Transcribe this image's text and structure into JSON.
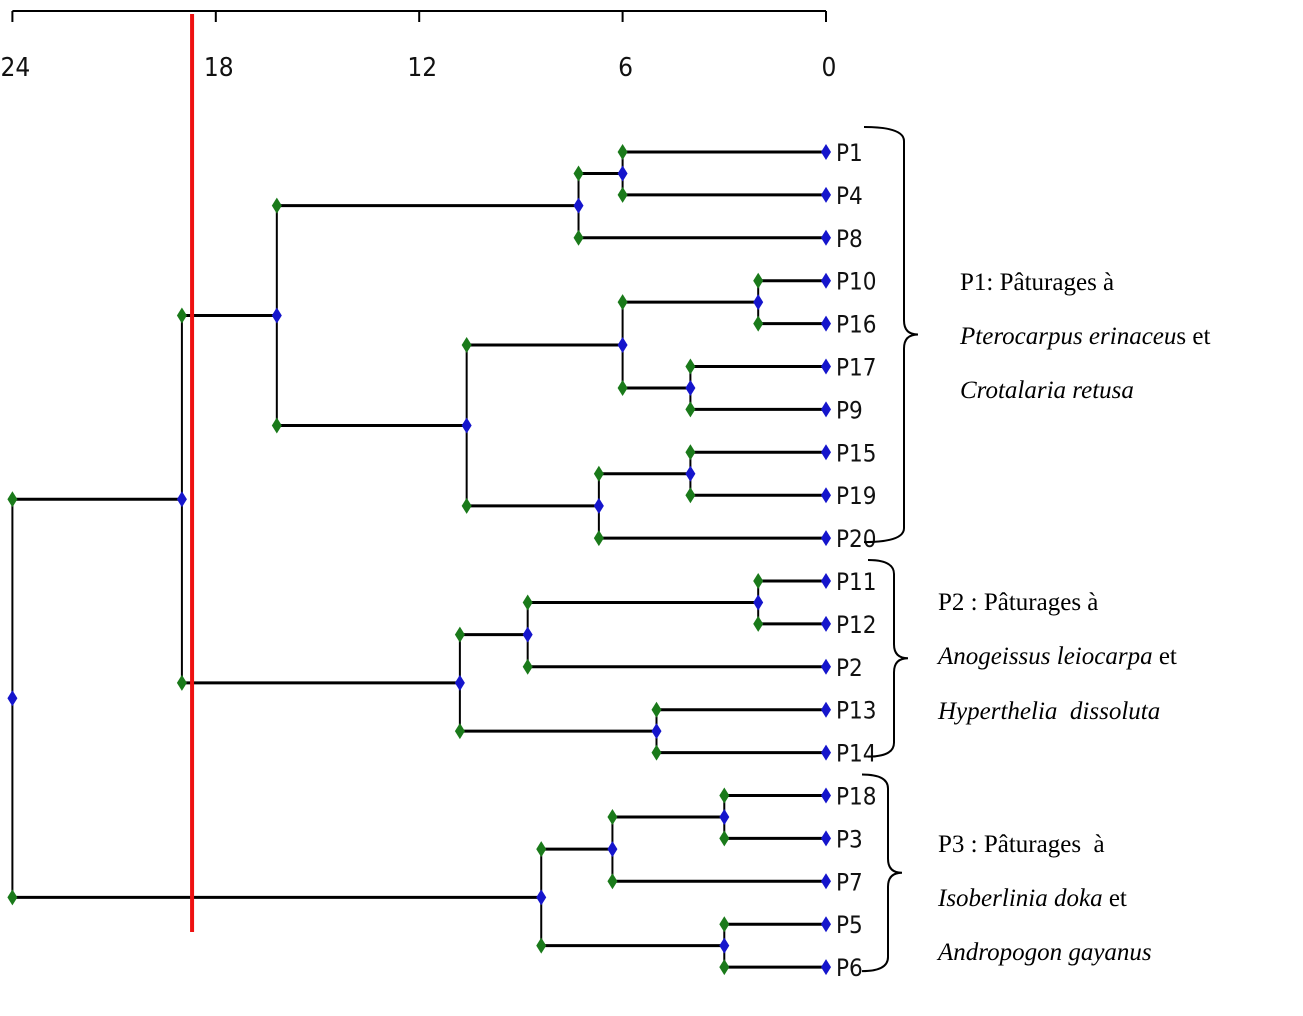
{
  "axis": {
    "ticks": [
      24,
      18,
      12,
      6,
      0
    ]
  },
  "cut_line": {
    "value": 18.7,
    "color": "#ee1111"
  },
  "colors": {
    "line": "#000000",
    "node_green": "#1a7a1a",
    "node_blue": "#1515cc",
    "leaf_blue": "#1515cc"
  },
  "leaves": [
    "P1",
    "P4",
    "P8",
    "P10",
    "P16",
    "P17",
    "P9",
    "P15",
    "P19",
    "P20",
    "P11",
    "P12",
    "P2",
    "P13",
    "P14",
    "P18",
    "P3",
    "P7",
    "P5",
    "P6"
  ],
  "merges": [
    {
      "id": "n1",
      "height": 6.0,
      "children": [
        "P1",
        "P4"
      ]
    },
    {
      "id": "n2",
      "height": 7.3,
      "children": [
        "n1",
        "P8"
      ]
    },
    {
      "id": "n3",
      "height": 2.0,
      "children": [
        "P10",
        "P16"
      ]
    },
    {
      "id": "n4",
      "height": 4.0,
      "children": [
        "P17",
        "P9"
      ]
    },
    {
      "id": "n5",
      "height": 6.0,
      "children": [
        "n3",
        "n4"
      ]
    },
    {
      "id": "n6",
      "height": 4.0,
      "children": [
        "P15",
        "P19"
      ]
    },
    {
      "id": "n7",
      "height": 6.7,
      "children": [
        "n6",
        "P20"
      ]
    },
    {
      "id": "n8",
      "height": 10.6,
      "children": [
        "n5",
        "n7"
      ]
    },
    {
      "id": "n9",
      "height": 16.2,
      "children": [
        "n2",
        "n8"
      ]
    },
    {
      "id": "n10",
      "height": 2.0,
      "children": [
        "P11",
        "P12"
      ]
    },
    {
      "id": "n11",
      "height": 8.8,
      "children": [
        "n10",
        "P2"
      ]
    },
    {
      "id": "n12",
      "height": 5.0,
      "children": [
        "P13",
        "P14"
      ]
    },
    {
      "id": "n13",
      "height": 10.8,
      "children": [
        "n11",
        "n12"
      ]
    },
    {
      "id": "n14",
      "height": 19.0,
      "children": [
        "n9",
        "n13"
      ]
    },
    {
      "id": "n15",
      "height": 3.0,
      "children": [
        "P18",
        "P3"
      ]
    },
    {
      "id": "n16",
      "height": 6.3,
      "children": [
        "n15",
        "P7"
      ]
    },
    {
      "id": "n17",
      "height": 3.0,
      "children": [
        "P5",
        "P6"
      ]
    },
    {
      "id": "n18",
      "height": 8.4,
      "children": [
        "n16",
        "n17"
      ]
    },
    {
      "id": "n19",
      "height": 24.0,
      "children": [
        "n14",
        "n18"
      ]
    }
  ],
  "groups": [
    {
      "first_leaf": "P1",
      "last_leaf": "P20",
      "title": "P1: Pâturages à",
      "species1": "Pterocarpus erinaceu",
      "species1_tail": "s et",
      "species2": "Crotalaria retusa",
      "species2_tail": ""
    },
    {
      "first_leaf": "P11",
      "last_leaf": "P14",
      "title": "P2 : Pâturages à",
      "species1": "Anogeissus leiocarpa",
      "species1_tail": " et",
      "species2": "Hyperthelia  dissoluta",
      "species2_tail": ""
    },
    {
      "first_leaf": "P18",
      "last_leaf": "P6",
      "title": "P3 : Pâturages  à",
      "species1": "Isoberlinia doka",
      "species1_tail": " et",
      "species2": "Andropogon gayanus",
      "species2_tail": ""
    }
  ]
}
